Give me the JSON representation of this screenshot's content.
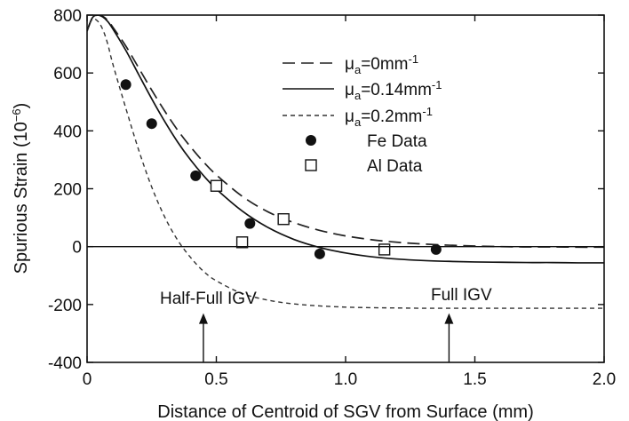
{
  "chart_data": {
    "type": "line",
    "xlabel": "Distance of Centroid of SGV from Surface (mm)",
    "ylabel": "Spurious Strain (10",
    "ylabel_exp": "−6",
    "ylabel_close": ")",
    "xlim": [
      0,
      2.0
    ],
    "ylim": [
      -400,
      800
    ],
    "x_ticks": [
      {
        "value": 0,
        "label": "0"
      },
      {
        "value": 0.5,
        "label": "0.5"
      },
      {
        "value": 1.0,
        "label": "1.0"
      },
      {
        "value": 1.5,
        "label": "1.5"
      },
      {
        "value": 2.0,
        "label": "2.0"
      }
    ],
    "y_ticks": [
      {
        "value": 800,
        "label": "800"
      },
      {
        "value": 600,
        "label": "600"
      },
      {
        "value": 400,
        "label": "400"
      },
      {
        "value": 200,
        "label": "200"
      },
      {
        "value": 0,
        "label": "0"
      },
      {
        "value": -200,
        "label": "-200"
      },
      {
        "value": -400,
        "label": "-400"
      }
    ],
    "zero_line": true,
    "grid": false,
    "legend_position": "top-right",
    "series": [
      {
        "id": "mu0",
        "name_prefix": "μ",
        "name_sub": "a",
        "name_val": "=0mm",
        "name_sup": "-1",
        "style": "long-dash",
        "color": "#222222",
        "x": [
          0,
          0.02,
          0.04,
          0.06,
          0.08,
          0.1,
          0.15,
          0.2,
          0.25,
          0.3,
          0.35,
          0.4,
          0.45,
          0.5,
          0.6,
          0.7,
          0.8,
          0.9,
          1.0,
          1.1,
          1.2,
          1.3,
          1.4,
          1.5,
          1.6,
          1.7,
          1.8,
          1.9,
          2.0
        ],
        "y": [
          745,
          790,
          800,
          796,
          782,
          758,
          693,
          617,
          541,
          469,
          403,
          345,
          293,
          248,
          174,
          120,
          83,
          56,
          37,
          24,
          15,
          9,
          5,
          2,
          0,
          -1,
          -1,
          -2,
          -2
        ]
      },
      {
        "id": "mu014",
        "name_prefix": "μ",
        "name_sub": "a",
        "name_val": "=0.14mm",
        "name_sup": "-1",
        "style": "solid",
        "color": "#111111",
        "x": [
          0,
          0.02,
          0.04,
          0.06,
          0.08,
          0.1,
          0.15,
          0.2,
          0.25,
          0.3,
          0.35,
          0.4,
          0.45,
          0.5,
          0.6,
          0.7,
          0.8,
          0.9,
          1.0,
          1.1,
          1.2,
          1.3,
          1.4,
          1.5,
          1.6,
          1.7,
          1.8,
          1.9,
          2.0
        ],
        "y": [
          745,
          790,
          800,
          794,
          778,
          752,
          678,
          594,
          511,
          433,
          362,
          300,
          246,
          199,
          123,
          66,
          25,
          -3,
          -22,
          -35,
          -43,
          -48,
          -51,
          -53,
          -54,
          -55,
          -55,
          -56,
          -56
        ]
      },
      {
        "id": "mu02",
        "name_prefix": "μ",
        "name_sub": "a",
        "name_val": "=0.2mm",
        "name_sup": "-1",
        "style": "short-dash",
        "color": "#333333",
        "x": [
          0,
          0.02,
          0.04,
          0.06,
          0.08,
          0.1,
          0.15,
          0.2,
          0.25,
          0.3,
          0.35,
          0.4,
          0.45,
          0.5,
          0.6,
          0.7,
          0.8,
          0.9,
          1.0,
          1.1,
          1.2,
          1.3,
          1.4,
          1.5,
          1.6,
          1.7,
          1.8,
          1.9,
          2.0
        ],
        "y": [
          745,
          785,
          780,
          752,
          700,
          630,
          478,
          333,
          206,
          103,
          23,
          -37,
          -85,
          -118,
          -162,
          -185,
          -198,
          -205,
          -209,
          -211,
          -212,
          -213,
          -213,
          -213,
          -213,
          -213,
          -213,
          -213,
          -213
        ]
      }
    ],
    "scatter_series": [
      {
        "id": "fe",
        "name": "Fe Data",
        "marker": "filled-circle",
        "x": [
          0.15,
          0.25,
          0.42,
          0.63,
          0.9,
          1.35
        ],
        "y": [
          560,
          425,
          245,
          80,
          -25,
          -10
        ]
      },
      {
        "id": "al",
        "name": "Al Data",
        "marker": "open-square",
        "x": [
          0.5,
          0.6,
          0.76,
          1.15
        ],
        "y": [
          210,
          15,
          95,
          -10
        ]
      }
    ],
    "annotations": [
      {
        "id": "half",
        "text": "Half-Full IGV",
        "arrow_x": 0.45,
        "arrow_from_y": -400,
        "arrow_to_y": -230
      },
      {
        "id": "full",
        "text": "Full IGV",
        "arrow_x": 1.4,
        "arrow_from_y": -400,
        "arrow_to_y": -230
      }
    ]
  }
}
